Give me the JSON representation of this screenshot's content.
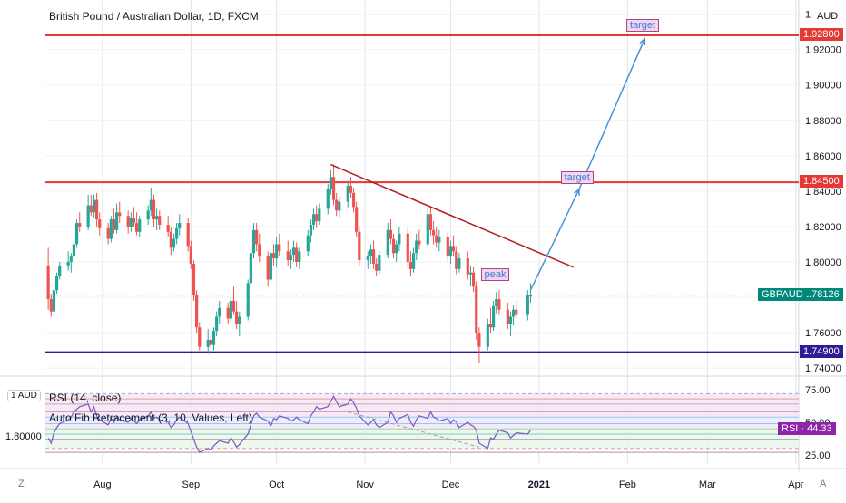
{
  "chart_data": {
    "type": "candlestick",
    "title": "British Pound / Australian Dollar, 1D, FXCM",
    "currency": "AUD",
    "price_axis": {
      "ticks": [
        1.94,
        1.92,
        1.9,
        1.88,
        1.86,
        1.84,
        1.82,
        1.8,
        1.78,
        1.76,
        1.74
      ],
      "tick_labels": [
        "1.94000",
        "1.92000",
        "1.90000",
        "1.88000",
        "1.86000",
        "1.84000",
        "1.82000",
        "1.80000",
        "1.78000",
        "1.76000",
        "1.74000"
      ],
      "range": [
        1.737,
        1.948
      ]
    },
    "time_axis": {
      "labels": [
        "Aug",
        "Sep",
        "Oct",
        "Nov",
        "Dec",
        "2021",
        "Feb",
        "Mar",
        "Apr"
      ],
      "label_dates": [
        "2020-08-01",
        "2020-09-01",
        "2020-10-01",
        "2020-11-01",
        "2020-12-01",
        "2021-01-01",
        "2021-02-01",
        "2021-03-01",
        "2021-04-01"
      ],
      "range": [
        "2020-07-12",
        "2021-04-02"
      ]
    },
    "horizontal_levels": [
      {
        "price": 1.928,
        "color": "#e53935",
        "label": "1.92800"
      },
      {
        "price": 1.845,
        "color": "#e53935",
        "label": "1.84500"
      },
      {
        "price": 1.749,
        "color": "#311b92",
        "label": "1.74900"
      }
    ],
    "current_price": {
      "symbol": "GBPAUD",
      "value": 1.78126,
      "label": "1.78126",
      "color": "#00897b"
    },
    "candles": [
      {
        "date": "2020-07-13",
        "o": 1.798,
        "h": 1.808,
        "l": 1.773,
        "c": 1.779
      },
      {
        "date": "2020-07-14",
        "o": 1.779,
        "h": 1.782,
        "l": 1.769,
        "c": 1.772
      },
      {
        "date": "2020-07-15",
        "o": 1.772,
        "h": 1.786,
        "l": 1.77,
        "c": 1.784
      },
      {
        "date": "2020-07-16",
        "o": 1.784,
        "h": 1.794,
        "l": 1.782,
        "c": 1.792
      },
      {
        "date": "2020-07-17",
        "o": 1.792,
        "h": 1.8,
        "l": 1.79,
        "c": 1.798
      },
      {
        "date": "2020-07-20",
        "o": 1.798,
        "h": 1.806,
        "l": 1.795,
        "c": 1.8
      },
      {
        "date": "2020-07-21",
        "o": 1.8,
        "h": 1.805,
        "l": 1.794,
        "c": 1.803
      },
      {
        "date": "2020-07-22",
        "o": 1.803,
        "h": 1.812,
        "l": 1.802,
        "c": 1.81
      },
      {
        "date": "2020-07-23",
        "o": 1.81,
        "h": 1.824,
        "l": 1.808,
        "c": 1.822
      },
      {
        "date": "2020-07-24",
        "o": 1.822,
        "h": 1.828,
        "l": 1.817,
        "c": 1.82
      },
      {
        "date": "2020-07-27",
        "o": 1.82,
        "h": 1.838,
        "l": 1.818,
        "c": 1.832
      },
      {
        "date": "2020-07-28",
        "o": 1.832,
        "h": 1.838,
        "l": 1.826,
        "c": 1.828
      },
      {
        "date": "2020-07-29",
        "o": 1.828,
        "h": 1.838,
        "l": 1.825,
        "c": 1.835
      },
      {
        "date": "2020-07-30",
        "o": 1.835,
        "h": 1.839,
        "l": 1.82,
        "c": 1.824
      },
      {
        "date": "2020-07-31",
        "o": 1.824,
        "h": 1.828,
        "l": 1.815,
        "c": 1.819
      },
      {
        "date": "2020-08-03",
        "o": 1.819,
        "h": 1.822,
        "l": 1.81,
        "c": 1.813
      },
      {
        "date": "2020-08-04",
        "o": 1.813,
        "h": 1.826,
        "l": 1.811,
        "c": 1.824
      },
      {
        "date": "2020-08-05",
        "o": 1.824,
        "h": 1.83,
        "l": 1.816,
        "c": 1.818
      },
      {
        "date": "2020-08-06",
        "o": 1.818,
        "h": 1.833,
        "l": 1.816,
        "c": 1.828
      },
      {
        "date": "2020-08-07",
        "o": 1.828,
        "h": 1.834,
        "l": 1.822,
        "c": 1.826
      },
      {
        "date": "2020-08-10",
        "o": 1.826,
        "h": 1.829,
        "l": 1.816,
        "c": 1.82
      },
      {
        "date": "2020-08-11",
        "o": 1.82,
        "h": 1.828,
        "l": 1.817,
        "c": 1.825
      },
      {
        "date": "2020-08-12",
        "o": 1.825,
        "h": 1.831,
        "l": 1.82,
        "c": 1.822
      },
      {
        "date": "2020-08-13",
        "o": 1.822,
        "h": 1.828,
        "l": 1.815,
        "c": 1.817
      },
      {
        "date": "2020-08-14",
        "o": 1.817,
        "h": 1.826,
        "l": 1.814,
        "c": 1.824
      },
      {
        "date": "2020-08-17",
        "o": 1.824,
        "h": 1.832,
        "l": 1.821,
        "c": 1.829
      },
      {
        "date": "2020-08-18",
        "o": 1.829,
        "h": 1.842,
        "l": 1.826,
        "c": 1.835
      },
      {
        "date": "2020-08-19",
        "o": 1.835,
        "h": 1.838,
        "l": 1.82,
        "c": 1.824
      },
      {
        "date": "2020-08-20",
        "o": 1.824,
        "h": 1.83,
        "l": 1.818,
        "c": 1.826
      },
      {
        "date": "2020-08-21",
        "o": 1.826,
        "h": 1.829,
        "l": 1.818,
        "c": 1.821
      },
      {
        "date": "2020-08-24",
        "o": 1.821,
        "h": 1.826,
        "l": 1.814,
        "c": 1.817
      },
      {
        "date": "2020-08-25",
        "o": 1.817,
        "h": 1.82,
        "l": 1.804,
        "c": 1.808
      },
      {
        "date": "2020-08-26",
        "o": 1.808,
        "h": 1.816,
        "l": 1.806,
        "c": 1.813
      },
      {
        "date": "2020-08-27",
        "o": 1.813,
        "h": 1.822,
        "l": 1.81,
        "c": 1.819
      },
      {
        "date": "2020-08-28",
        "o": 1.819,
        "h": 1.827,
        "l": 1.815,
        "c": 1.822
      },
      {
        "date": "2020-08-31",
        "o": 1.822,
        "h": 1.825,
        "l": 1.806,
        "c": 1.809
      },
      {
        "date": "2020-09-01",
        "o": 1.809,
        "h": 1.812,
        "l": 1.796,
        "c": 1.799
      },
      {
        "date": "2020-09-02",
        "o": 1.799,
        "h": 1.801,
        "l": 1.778,
        "c": 1.781
      },
      {
        "date": "2020-09-03",
        "o": 1.781,
        "h": 1.784,
        "l": 1.76,
        "c": 1.763
      },
      {
        "date": "2020-09-04",
        "o": 1.763,
        "h": 1.766,
        "l": 1.75,
        "c": 1.752
      },
      {
        "date": "2020-09-07",
        "o": 1.752,
        "h": 1.762,
        "l": 1.748,
        "c": 1.756
      },
      {
        "date": "2020-09-08",
        "o": 1.756,
        "h": 1.759,
        "l": 1.749,
        "c": 1.753
      },
      {
        "date": "2020-09-09",
        "o": 1.753,
        "h": 1.763,
        "l": 1.75,
        "c": 1.761
      },
      {
        "date": "2020-09-10",
        "o": 1.761,
        "h": 1.772,
        "l": 1.758,
        "c": 1.769
      },
      {
        "date": "2020-09-11",
        "o": 1.769,
        "h": 1.778,
        "l": 1.765,
        "c": 1.774
      },
      {
        "date": "2020-09-14",
        "o": 1.774,
        "h": 1.777,
        "l": 1.765,
        "c": 1.768
      },
      {
        "date": "2020-09-15",
        "o": 1.768,
        "h": 1.78,
        "l": 1.766,
        "c": 1.778
      },
      {
        "date": "2020-09-16",
        "o": 1.778,
        "h": 1.786,
        "l": 1.77,
        "c": 1.772
      },
      {
        "date": "2020-09-17",
        "o": 1.772,
        "h": 1.778,
        "l": 1.762,
        "c": 1.765
      },
      {
        "date": "2020-09-18",
        "o": 1.765,
        "h": 1.772,
        "l": 1.758,
        "c": 1.769
      },
      {
        "date": "2020-09-21",
        "o": 1.769,
        "h": 1.79,
        "l": 1.767,
        "c": 1.788
      },
      {
        "date": "2020-09-22",
        "o": 1.788,
        "h": 1.808,
        "l": 1.786,
        "c": 1.805
      },
      {
        "date": "2020-09-23",
        "o": 1.805,
        "h": 1.822,
        "l": 1.802,
        "c": 1.818
      },
      {
        "date": "2020-09-24",
        "o": 1.818,
        "h": 1.822,
        "l": 1.806,
        "c": 1.81
      },
      {
        "date": "2020-09-25",
        "o": 1.81,
        "h": 1.816,
        "l": 1.8,
        "c": 1.803
      },
      {
        "date": "2020-09-28",
        "o": 1.803,
        "h": 1.806,
        "l": 1.786,
        "c": 1.79
      },
      {
        "date": "2020-09-29",
        "o": 1.79,
        "h": 1.808,
        "l": 1.788,
        "c": 1.805
      },
      {
        "date": "2020-09-30",
        "o": 1.805,
        "h": 1.81,
        "l": 1.798,
        "c": 1.802
      },
      {
        "date": "2020-10-01",
        "o": 1.802,
        "h": 1.814,
        "l": 1.797,
        "c": 1.81
      },
      {
        "date": "2020-10-02",
        "o": 1.81,
        "h": 1.816,
        "l": 1.803,
        "c": 1.806
      },
      {
        "date": "2020-10-05",
        "o": 1.806,
        "h": 1.812,
        "l": 1.798,
        "c": 1.801
      },
      {
        "date": "2020-10-06",
        "o": 1.801,
        "h": 1.807,
        "l": 1.796,
        "c": 1.804
      },
      {
        "date": "2020-10-07",
        "o": 1.804,
        "h": 1.812,
        "l": 1.8,
        "c": 1.808
      },
      {
        "date": "2020-10-08",
        "o": 1.808,
        "h": 1.811,
        "l": 1.797,
        "c": 1.8
      },
      {
        "date": "2020-10-09",
        "o": 1.8,
        "h": 1.808,
        "l": 1.796,
        "c": 1.806
      },
      {
        "date": "2020-10-12",
        "o": 1.806,
        "h": 1.818,
        "l": 1.803,
        "c": 1.815
      },
      {
        "date": "2020-10-13",
        "o": 1.815,
        "h": 1.824,
        "l": 1.811,
        "c": 1.821
      },
      {
        "date": "2020-10-14",
        "o": 1.821,
        "h": 1.83,
        "l": 1.818,
        "c": 1.827
      },
      {
        "date": "2020-10-15",
        "o": 1.827,
        "h": 1.832,
        "l": 1.819,
        "c": 1.823
      },
      {
        "date": "2020-10-16",
        "o": 1.823,
        "h": 1.833,
        "l": 1.821,
        "c": 1.83
      },
      {
        "date": "2020-10-19",
        "o": 1.83,
        "h": 1.844,
        "l": 1.827,
        "c": 1.841
      },
      {
        "date": "2020-10-20",
        "o": 1.841,
        "h": 1.852,
        "l": 1.838,
        "c": 1.848
      },
      {
        "date": "2020-10-21",
        "o": 1.848,
        "h": 1.855,
        "l": 1.832,
        "c": 1.835
      },
      {
        "date": "2020-10-22",
        "o": 1.835,
        "h": 1.839,
        "l": 1.826,
        "c": 1.829
      },
      {
        "date": "2020-10-23",
        "o": 1.829,
        "h": 1.837,
        "l": 1.825,
        "c": 1.834
      },
      {
        "date": "2020-10-26",
        "o": 1.834,
        "h": 1.846,
        "l": 1.831,
        "c": 1.843
      },
      {
        "date": "2020-10-27",
        "o": 1.843,
        "h": 1.848,
        "l": 1.836,
        "c": 1.839
      },
      {
        "date": "2020-10-28",
        "o": 1.839,
        "h": 1.842,
        "l": 1.828,
        "c": 1.831
      },
      {
        "date": "2020-10-29",
        "o": 1.831,
        "h": 1.834,
        "l": 1.814,
        "c": 1.817
      },
      {
        "date": "2020-10-30",
        "o": 1.817,
        "h": 1.82,
        "l": 1.798,
        "c": 1.801
      },
      {
        "date": "2020-11-02",
        "o": 1.801,
        "h": 1.806,
        "l": 1.796,
        "c": 1.803
      },
      {
        "date": "2020-11-03",
        "o": 1.803,
        "h": 1.81,
        "l": 1.799,
        "c": 1.807
      },
      {
        "date": "2020-11-04",
        "o": 1.807,
        "h": 1.812,
        "l": 1.796,
        "c": 1.799
      },
      {
        "date": "2020-11-05",
        "o": 1.799,
        "h": 1.802,
        "l": 1.792,
        "c": 1.795
      },
      {
        "date": "2020-11-06",
        "o": 1.795,
        "h": 1.806,
        "l": 1.793,
        "c": 1.804
      },
      {
        "date": "2020-11-09",
        "o": 1.804,
        "h": 1.822,
        "l": 1.802,
        "c": 1.818
      },
      {
        "date": "2020-11-10",
        "o": 1.818,
        "h": 1.824,
        "l": 1.81,
        "c": 1.813
      },
      {
        "date": "2020-11-11",
        "o": 1.813,
        "h": 1.816,
        "l": 1.802,
        "c": 1.805
      },
      {
        "date": "2020-11-12",
        "o": 1.805,
        "h": 1.812,
        "l": 1.8,
        "c": 1.81
      },
      {
        "date": "2020-11-13",
        "o": 1.81,
        "h": 1.82,
        "l": 1.806,
        "c": 1.816
      },
      {
        "date": "2020-11-16",
        "o": 1.816,
        "h": 1.819,
        "l": 1.797,
        "c": 1.8
      },
      {
        "date": "2020-11-17",
        "o": 1.8,
        "h": 1.806,
        "l": 1.792,
        "c": 1.796
      },
      {
        "date": "2020-11-18",
        "o": 1.796,
        "h": 1.808,
        "l": 1.794,
        "c": 1.805
      },
      {
        "date": "2020-11-19",
        "o": 1.805,
        "h": 1.816,
        "l": 1.801,
        "c": 1.812
      },
      {
        "date": "2020-11-20",
        "o": 1.812,
        "h": 1.818,
        "l": 1.807,
        "c": 1.81
      },
      {
        "date": "2020-11-23",
        "o": 1.81,
        "h": 1.83,
        "l": 1.808,
        "c": 1.827
      },
      {
        "date": "2020-11-24",
        "o": 1.827,
        "h": 1.831,
        "l": 1.815,
        "c": 1.818
      },
      {
        "date": "2020-11-25",
        "o": 1.818,
        "h": 1.823,
        "l": 1.81,
        "c": 1.815
      },
      {
        "date": "2020-11-26",
        "o": 1.815,
        "h": 1.82,
        "l": 1.808,
        "c": 1.811
      },
      {
        "date": "2020-11-27",
        "o": 1.811,
        "h": 1.818,
        "l": 1.806,
        "c": 1.814
      },
      {
        "date": "2020-11-30",
        "o": 1.814,
        "h": 1.817,
        "l": 1.8,
        "c": 1.803
      },
      {
        "date": "2020-12-01",
        "o": 1.803,
        "h": 1.812,
        "l": 1.799,
        "c": 1.809
      },
      {
        "date": "2020-12-02",
        "o": 1.809,
        "h": 1.815,
        "l": 1.803,
        "c": 1.806
      },
      {
        "date": "2020-12-03",
        "o": 1.806,
        "h": 1.809,
        "l": 1.793,
        "c": 1.796
      },
      {
        "date": "2020-12-04",
        "o": 1.796,
        "h": 1.805,
        "l": 1.794,
        "c": 1.802
      },
      {
        "date": "2020-12-07",
        "o": 1.802,
        "h": 1.806,
        "l": 1.79,
        "c": 1.793
      },
      {
        "date": "2020-12-08",
        "o": 1.793,
        "h": 1.798,
        "l": 1.786,
        "c": 1.794
      },
      {
        "date": "2020-12-09",
        "o": 1.794,
        "h": 1.797,
        "l": 1.783,
        "c": 1.786
      },
      {
        "date": "2020-12-10",
        "o": 1.786,
        "h": 1.789,
        "l": 1.756,
        "c": 1.76
      },
      {
        "date": "2020-12-11",
        "o": 1.76,
        "h": 1.763,
        "l": 1.743,
        "c": 1.752
      },
      {
        "date": "2020-12-14",
        "o": 1.752,
        "h": 1.768,
        "l": 1.75,
        "c": 1.765
      },
      {
        "date": "2020-12-15",
        "o": 1.765,
        "h": 1.774,
        "l": 1.76,
        "c": 1.763
      },
      {
        "date": "2020-12-16",
        "o": 1.763,
        "h": 1.778,
        "l": 1.761,
        "c": 1.775
      },
      {
        "date": "2020-12-17",
        "o": 1.775,
        "h": 1.783,
        "l": 1.771,
        "c": 1.779
      },
      {
        "date": "2020-12-18",
        "o": 1.779,
        "h": 1.784,
        "l": 1.77,
        "c": 1.773
      },
      {
        "date": "2020-12-21",
        "o": 1.773,
        "h": 1.777,
        "l": 1.762,
        "c": 1.765
      },
      {
        "date": "2020-12-22",
        "o": 1.765,
        "h": 1.772,
        "l": 1.758,
        "c": 1.769
      },
      {
        "date": "2020-12-23",
        "o": 1.769,
        "h": 1.776,
        "l": 1.764,
        "c": 1.773
      },
      {
        "date": "2020-12-24",
        "o": 1.773,
        "h": 1.778,
        "l": 1.768,
        "c": 1.77
      },
      {
        "date": "2020-12-28",
        "o": 1.77,
        "h": 1.784,
        "l": 1.767,
        "c": 1.781
      },
      {
        "date": "2020-12-29",
        "o": 1.781,
        "h": 1.788,
        "l": 1.777,
        "c": 1.781
      }
    ],
    "trendline": {
      "from": {
        "date": "2020-10-20",
        "price": 1.855
      },
      "to": {
        "date": "2021-01-13",
        "price": 1.797
      },
      "color": "#b71c1c"
    },
    "projection_path": [
      {
        "date": "2020-12-29",
        "price": 1.784
      },
      {
        "date": "2021-01-15",
        "price": 1.841
      },
      {
        "date": "2021-02-07",
        "price": 1.926
      }
    ],
    "annotations": [
      {
        "text": "peak",
        "date": "2020-12-16",
        "price": 1.789
      },
      {
        "text": "target",
        "date": "2021-01-13",
        "price": 1.844
      },
      {
        "text": "target",
        "date": "2021-02-05",
        "price": 1.93
      }
    ],
    "rsi": {
      "legend_rsi": "RSI (14, close)",
      "legend_fib": "Auto Fib Retracement (3, 10, Values, Left)",
      "ticks": [
        75,
        50,
        25
      ],
      "tick_labels": [
        "75.00",
        "50.00",
        "25.00"
      ],
      "range": [
        18,
        82
      ],
      "current": 44.33,
      "current_label": "RSI · 44.33",
      "left_label": "1.80000",
      "fib_levels": [
        72,
        68,
        64,
        58,
        54,
        49,
        45,
        41,
        37,
        30,
        27
      ],
      "values": [
        38,
        34,
        42,
        46,
        49,
        52,
        54,
        58,
        60,
        62,
        64,
        58,
        62,
        55,
        52,
        48,
        53,
        50,
        54,
        52,
        50,
        53,
        51,
        49,
        52,
        55,
        58,
        53,
        54,
        52,
        50,
        46,
        48,
        52,
        54,
        49,
        43,
        37,
        31,
        27,
        30,
        29,
        32,
        34,
        36,
        34,
        38,
        35,
        31,
        33,
        41,
        48,
        55,
        57,
        54,
        51,
        47,
        53,
        52,
        55,
        53,
        51,
        52,
        54,
        52,
        49,
        55,
        58,
        62,
        60,
        62,
        66,
        70,
        66,
        62,
        64,
        68,
        65,
        61,
        55,
        48,
        50,
        52,
        48,
        46,
        50,
        58,
        55,
        50,
        53,
        56,
        50,
        47,
        52,
        55,
        53,
        58,
        54,
        53,
        51,
        53,
        49,
        52,
        50,
        46,
        50,
        48,
        47,
        44,
        34,
        30,
        38,
        37,
        41,
        44,
        42,
        38,
        40,
        42,
        41,
        44,
        44.33
      ]
    }
  },
  "badges": {
    "currency": "AUD",
    "symbol": "GBPAUD",
    "price": "1.78126",
    "level_top": "1.92800",
    "level_mid": "1.84500",
    "level_bot": "1.74900",
    "rsi_pane_currency": "1 AUD"
  },
  "footer": {
    "left_icon_label": "Z",
    "right_icon_label": "A"
  }
}
